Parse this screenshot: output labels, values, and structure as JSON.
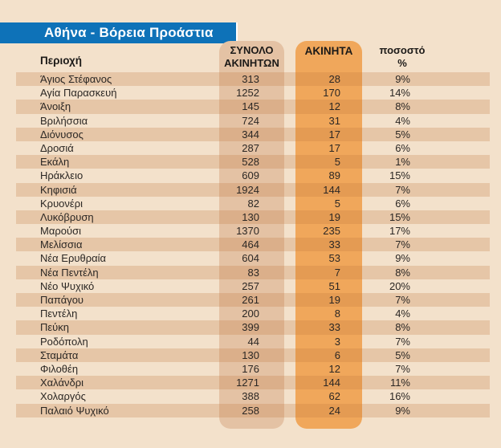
{
  "banner": {
    "title": "Αθήνα - Βόρεια Προάστια"
  },
  "colors": {
    "banner_blue": "#0e72b8",
    "page_bg": "#f3e1cb",
    "row_stripe": "#e6c7a7",
    "pill_total_column": "#e4c2a4",
    "pill_akinita_column": "#f0a75b",
    "text_dark": "#2b2724",
    "title_text": "#ffffff"
  },
  "headers": {
    "region": "Περιοχή",
    "total_line1": "ΣΥΝΟΛΟ",
    "total_line2": "ΑΚΙΝΗΤΩΝ",
    "akinita": "ΑΚΙΝΗΤΑ",
    "pct_line1": "ποσοστό",
    "pct_line2": "%"
  },
  "chart_data": {
    "type": "table",
    "title": "Αθήνα - Βόρεια Προάστια",
    "columns": [
      "Περιοχή",
      "ΣΥΝΟΛΟ ΑΚΙΝΗΤΩΝ",
      "ΑΚΙΝΗΤΑ",
      "ποσοστό %"
    ],
    "rows": [
      [
        "Άγιος Στέφανος",
        313,
        28,
        "9%"
      ],
      [
        "Αγία Παρασκευή",
        1252,
        170,
        "14%"
      ],
      [
        "Άνοιξη",
        145,
        12,
        "8%"
      ],
      [
        "Βριλήσσια",
        724,
        31,
        "4%"
      ],
      [
        "Διόνυσος",
        344,
        17,
        "5%"
      ],
      [
        "Δροσιά",
        287,
        17,
        "6%"
      ],
      [
        "Εκάλη",
        528,
        5,
        "1%"
      ],
      [
        "Ηράκλειο",
        609,
        89,
        "15%"
      ],
      [
        "Κηφισιά",
        1924,
        144,
        "7%"
      ],
      [
        "Κρυονέρι",
        82,
        5,
        "6%"
      ],
      [
        "Λυκόβρυση",
        130,
        19,
        "15%"
      ],
      [
        "Μαρούσι",
        1370,
        235,
        "17%"
      ],
      [
        "Μελίσσια",
        464,
        33,
        "7%"
      ],
      [
        "Νέα Ερυθραία",
        604,
        53,
        "9%"
      ],
      [
        "Νέα Πεντέλη",
        83,
        7,
        "8%"
      ],
      [
        "Νέο Ψυχικό",
        257,
        51,
        "20%"
      ],
      [
        "Παπάγου",
        261,
        19,
        "7%"
      ],
      [
        "Πεντέλη",
        200,
        8,
        "4%"
      ],
      [
        "Πεύκη",
        399,
        33,
        "8%"
      ],
      [
        "Ροδόπολη",
        44,
        3,
        "7%"
      ],
      [
        "Σταμάτα",
        130,
        6,
        "5%"
      ],
      [
        "Φιλοθέη",
        176,
        12,
        "7%"
      ],
      [
        "Χαλάνδρι",
        1271,
        144,
        "11%"
      ],
      [
        "Χολαργός",
        388,
        62,
        "16%"
      ],
      [
        "Παλαιό Ψυχικό",
        258,
        24,
        "9%"
      ]
    ]
  }
}
